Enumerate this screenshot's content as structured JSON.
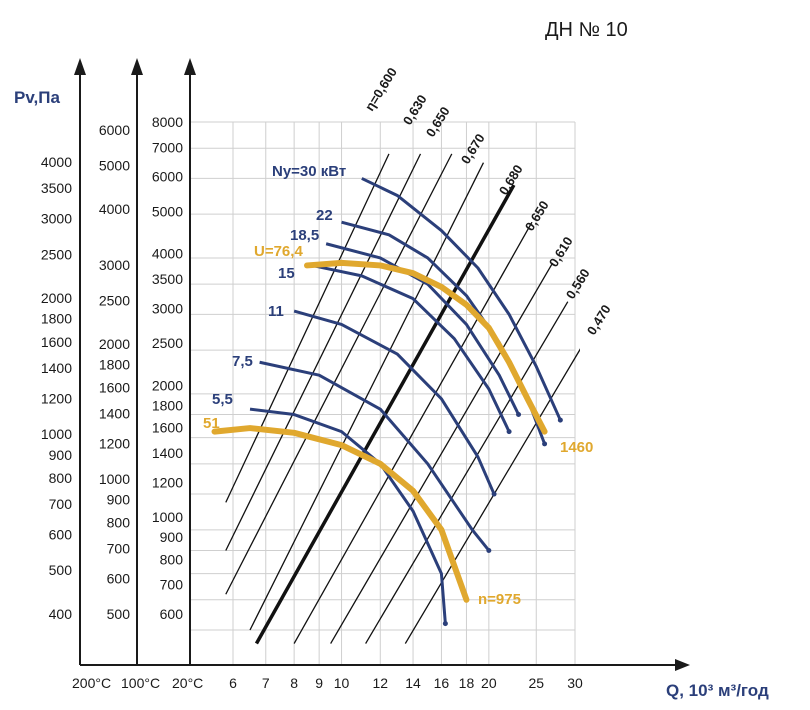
{
  "title": "ДН № 10",
  "colors": {
    "axis": "#1a1a1a",
    "power_curves": "#2b3f7a",
    "rpm_curves": "#e0a82e",
    "grid": "#cfcfcf",
    "efficiency_lines": "#111111"
  },
  "chart_data": {
    "type": "line",
    "title": "ДН № 10",
    "xlabel": "Q, 10³ м³/год",
    "ylabel": "Pv,Па",
    "x_ticks": [
      "6",
      "7",
      "8",
      "9",
      "10",
      "12",
      "14",
      "16",
      "18",
      "20",
      "25",
      "30"
    ],
    "x_log": true,
    "y_log": true,
    "axes": [
      {
        "temperature": "200°C",
        "ticks": [
          "400",
          "500",
          "600",
          "700",
          "800",
          "900",
          "1000",
          "1200",
          "1400",
          "1600",
          "1800",
          "2000",
          "2500",
          "3000",
          "3500",
          "4000"
        ]
      },
      {
        "temperature": "100°C",
        "ticks": [
          "500",
          "600",
          "700",
          "800",
          "900",
          "1000",
          "1200",
          "1400",
          "1600",
          "1800",
          "2000",
          "2500",
          "3000",
          "4000",
          "5000",
          "6000"
        ]
      },
      {
        "temperature": "20°C",
        "ticks": [
          "600",
          "700",
          "800",
          "900",
          "1000",
          "1200",
          "1400",
          "1600",
          "1800",
          "2000",
          "2500",
          "3000",
          "3500",
          "4000",
          "5000",
          "6000",
          "7000",
          "8000"
        ]
      }
    ],
    "efficiency_labels": [
      "η=0,600",
      "0,630",
      "0,650",
      "0,670",
      "0,680",
      "0,650",
      "0,610",
      "0,560",
      "0,470"
    ],
    "power_labels": [
      "Ny=30 кВт",
      "22",
      "18,5",
      "15",
      "11",
      "7,5",
      "5,5"
    ],
    "speed_labels": [
      "U=76,4",
      "51",
      "1460",
      "n=975"
    ],
    "series": [
      {
        "name": "n=975",
        "points": [
          [
            5.5,
            1650
          ],
          [
            6.5,
            1680
          ],
          [
            8,
            1640
          ],
          [
            10,
            1540
          ],
          [
            12,
            1400
          ],
          [
            14,
            1220
          ],
          [
            16,
            1000
          ],
          [
            18,
            700
          ]
        ]
      },
      {
        "name": "1460",
        "points": [
          [
            8.5,
            3850
          ],
          [
            10,
            3900
          ],
          [
            12,
            3850
          ],
          [
            14,
            3700
          ],
          [
            16,
            3450
          ],
          [
            18,
            3150
          ],
          [
            20,
            2800
          ],
          [
            22,
            2350
          ],
          [
            24,
            1950
          ],
          [
            26,
            1650
          ]
        ]
      }
    ],
    "power_curves": [
      {
        "label": "Ny=30 кВт",
        "points": [
          [
            11,
            6000
          ],
          [
            13,
            5500
          ],
          [
            16,
            4600
          ],
          [
            19,
            3800
          ],
          [
            22,
            3000
          ],
          [
            25,
            2300
          ],
          [
            28,
            1750
          ]
        ]
      },
      {
        "label": "22",
        "points": [
          [
            10,
            4800
          ],
          [
            12.5,
            4500
          ],
          [
            15,
            4000
          ],
          [
            18,
            3300
          ],
          [
            21,
            2600
          ],
          [
            24,
            1950
          ],
          [
            26,
            1550
          ]
        ]
      },
      {
        "label": "18,5",
        "points": [
          [
            9.3,
            4300
          ],
          [
            12,
            4000
          ],
          [
            15,
            3500
          ],
          [
            18,
            2850
          ],
          [
            21,
            2200
          ],
          [
            23,
            1800
          ]
        ]
      },
      {
        "label": "15",
        "points": [
          [
            8.7,
            3850
          ],
          [
            11,
            3650
          ],
          [
            14,
            3250
          ],
          [
            17,
            2650
          ],
          [
            20,
            2050
          ],
          [
            22,
            1650
          ]
        ]
      },
      {
        "label": "11",
        "points": [
          [
            8,
            3050
          ],
          [
            10,
            2850
          ],
          [
            13,
            2450
          ],
          [
            16,
            1950
          ],
          [
            19,
            1450
          ],
          [
            20.5,
            1200
          ]
        ]
      },
      {
        "label": "7,5",
        "points": [
          [
            6.8,
            2350
          ],
          [
            9,
            2200
          ],
          [
            12,
            1850
          ],
          [
            15,
            1400
          ],
          [
            18.5,
            1000
          ],
          [
            20,
            900
          ]
        ]
      },
      {
        "label": "5,5",
        "points": [
          [
            6.5,
            1850
          ],
          [
            8,
            1800
          ],
          [
            10,
            1650
          ],
          [
            12,
            1400
          ],
          [
            14,
            1100
          ],
          [
            16,
            800
          ],
          [
            16.3,
            620
          ]
        ]
      }
    ]
  }
}
